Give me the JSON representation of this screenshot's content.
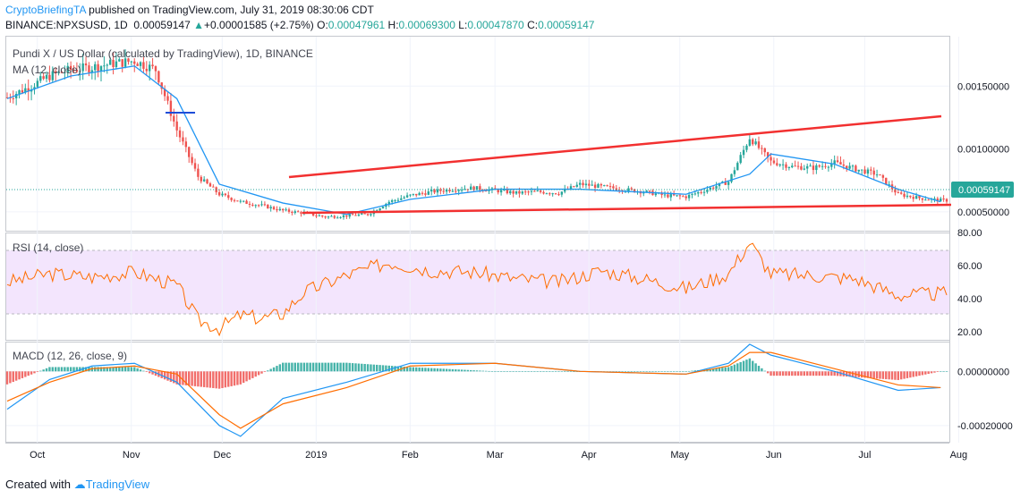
{
  "header": {
    "author": "CryptoBriefingTA",
    "published": " published on TradingView.com, July 31, 2019 08:30:06 CDT",
    "symbol": "BINANCE:NPXSUSD, 1D",
    "last": "0.00059147",
    "change_arrow": "▲",
    "change": "+0.00001585 (+2.75%)",
    "o_label": "O:",
    "o_value": "0.00047961",
    "h_label": "H:",
    "h_value": "0.00069300",
    "l_label": "L:",
    "l_value": "0.00047870",
    "c_label": "C:",
    "c_value": "0.00059147"
  },
  "panes": {
    "price_title": "Pundi X / US Dollar (calculated by TradingView), 1D, BINANCE",
    "ma_label": "MA (12, close)",
    "rsi_label": "RSI (14, close)",
    "macd_label": "MACD (12, 26, close, 9)",
    "last_price_tag": "0.00059147"
  },
  "footer": {
    "created_with": "Created with",
    "brand": "TradingView"
  },
  "colors": {
    "up": "#26a69a",
    "down": "#ef5350",
    "ma": "#2196f3",
    "trendline": "#f23030",
    "rsi_line": "#ff6d00",
    "rsi_band": "#f3e5fd",
    "macd_line": "#2196f3",
    "signal_line": "#ff6d00"
  },
  "chart_data": [
    {
      "type": "candlestick",
      "title": "Pundi X / US Dollar (calculated by TradingView), 1D, BINANCE",
      "x_ticks": [
        "Oct",
        "Nov",
        "Dec",
        "2019",
        "Feb",
        "Mar",
        "Apr",
        "May",
        "Jun",
        "Jul",
        "Aug"
      ],
      "y_ticks": [
        "0.00050000",
        "0.00100000",
        "0.00150000"
      ],
      "ylim": [
        0.00035,
        0.0019
      ],
      "last_value": 0.00059147,
      "series": [
        {
          "name": "Price",
          "x": [
            "2018-09-24",
            "2018-10-01",
            "2018-10-08",
            "2018-10-15",
            "2018-10-22",
            "2018-10-29",
            "2018-11-05",
            "2018-11-12",
            "2018-11-19",
            "2018-11-26",
            "2018-12-03",
            "2018-12-10",
            "2018-12-17",
            "2018-12-24",
            "2018-12-31",
            "2019-01-07",
            "2019-01-14",
            "2019-01-21",
            "2019-01-28",
            "2019-02-04",
            "2019-02-11",
            "2019-02-18",
            "2019-02-25",
            "2019-03-04",
            "2019-03-11",
            "2019-03-18",
            "2019-03-25",
            "2019-04-01",
            "2019-04-08",
            "2019-04-15",
            "2019-04-22",
            "2019-04-29",
            "2019-05-06",
            "2019-05-13",
            "2019-05-20",
            "2019-05-27",
            "2019-06-03",
            "2019-06-10",
            "2019-06-17",
            "2019-06-24",
            "2019-07-01",
            "2019-07-08",
            "2019-07-15",
            "2019-07-22",
            "2019-07-29"
          ],
          "close": [
            0.00141,
            0.00149,
            0.00158,
            0.00163,
            0.00165,
            0.00168,
            0.0017,
            0.00163,
            0.00115,
            0.00078,
            0.00064,
            0.00058,
            0.00055,
            0.00051,
            0.00049,
            0.00046,
            0.00047,
            0.00048,
            0.00058,
            0.00063,
            0.00066,
            0.00068,
            0.00069,
            0.00067,
            0.00065,
            0.00066,
            0.00065,
            0.00072,
            0.0007,
            0.00068,
            0.00066,
            0.00063,
            0.00062,
            0.00068,
            0.00074,
            0.00109,
            0.0009,
            0.00086,
            0.00085,
            0.00089,
            0.00084,
            0.0008,
            0.00064,
            0.00061,
            0.00059147
          ]
        },
        {
          "name": "MA (12, close)",
          "x": [
            "2018-09-24",
            "2018-10-15",
            "2018-11-05",
            "2018-11-19",
            "2018-12-03",
            "2018-12-24",
            "2019-01-14",
            "2019-02-04",
            "2019-03-04",
            "2019-04-01",
            "2019-05-06",
            "2019-05-27",
            "2019-06-03",
            "2019-06-24",
            "2019-07-15",
            "2019-07-29"
          ],
          "y": [
            0.0014,
            0.00158,
            0.00166,
            0.0014,
            0.00072,
            0.00057,
            0.00048,
            0.0006,
            0.00068,
            0.00068,
            0.00064,
            0.0008,
            0.00096,
            0.00088,
            0.00068,
            0.00058
          ]
        }
      ],
      "annotations": [
        "ascending broadening wedge trendlines"
      ]
    },
    {
      "type": "line",
      "title": "RSI (14, close)",
      "y_ticks": [
        "20.00",
        "40.00",
        "60.00",
        "80.00"
      ],
      "ylim": [
        15,
        80
      ],
      "band": [
        30,
        70
      ],
      "series": [
        {
          "name": "RSI (14, close)",
          "x": [
            "2018-09-24",
            "2018-10-08",
            "2018-10-22",
            "2018-11-05",
            "2018-11-19",
            "2018-11-26",
            "2018-12-03",
            "2018-12-10",
            "2018-12-17",
            "2018-12-24",
            "2018-12-31",
            "2019-01-14",
            "2019-01-28",
            "2019-02-11",
            "2019-02-25",
            "2019-03-11",
            "2019-03-25",
            "2019-04-08",
            "2019-04-22",
            "2019-05-06",
            "2019-05-20",
            "2019-05-27",
            "2019-06-03",
            "2019-06-17",
            "2019-07-01",
            "2019-07-15",
            "2019-07-29"
          ],
          "y": [
            50,
            55,
            53,
            56,
            48,
            27,
            22,
            30,
            28,
            31,
            44,
            54,
            62,
            57,
            56,
            52,
            50,
            57,
            52,
            46,
            55,
            74,
            55,
            54,
            52,
            42,
            43
          ]
        }
      ]
    },
    {
      "type": "line",
      "title": "MACD (12, 26, close, 9)",
      "y_ticks": [
        "-0.00020000",
        "0.00000000"
      ],
      "ylim": [
        -0.00026,
        0.00011
      ],
      "series": [
        {
          "name": "MACD",
          "x": [
            "2018-09-24",
            "2018-10-08",
            "2018-10-22",
            "2018-11-05",
            "2018-11-19",
            "2018-12-03",
            "2018-12-10",
            "2018-12-24",
            "2019-01-14",
            "2019-02-04",
            "2019-03-04",
            "2019-04-01",
            "2019-05-06",
            "2019-05-20",
            "2019-05-27",
            "2019-06-03",
            "2019-06-24",
            "2019-07-15",
            "2019-07-29"
          ],
          "y": [
            -0.00014,
            -3e-05,
            2e-05,
            3e-05,
            -4e-05,
            -0.0002,
            -0.00024,
            -0.0001,
            -4e-05,
            3e-05,
            3e-05,
            0.0,
            -1e-05,
            3e-05,
            0.0001,
            6e-05,
            0.0,
            -7e-05,
            -6e-05
          ]
        },
        {
          "name": "Signal",
          "x": [
            "2018-09-24",
            "2018-10-08",
            "2018-10-22",
            "2018-11-05",
            "2018-11-19",
            "2018-12-03",
            "2018-12-10",
            "2018-12-24",
            "2019-01-14",
            "2019-02-04",
            "2019-03-04",
            "2019-04-01",
            "2019-05-06",
            "2019-05-20",
            "2019-05-27",
            "2019-06-03",
            "2019-06-24",
            "2019-07-15",
            "2019-07-29"
          ],
          "y": [
            -0.00011,
            -4e-05,
            1e-05,
            2e-05,
            -1e-05,
            -0.00016,
            -0.00021,
            -0.00012,
            -6e-05,
            2e-05,
            3e-05,
            0.0,
            -1e-05,
            2e-05,
            7e-05,
            7e-05,
            1e-05,
            -5e-05,
            -6e-05
          ]
        }
      ]
    }
  ]
}
